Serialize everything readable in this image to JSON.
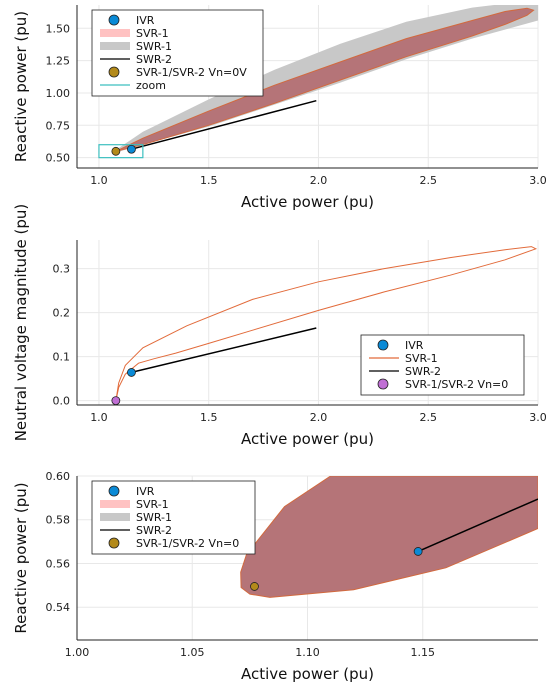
{
  "chart_data": [
    {
      "type": "area",
      "xlabel": "Active power (pu)",
      "ylabel": "Reactive power (pu)",
      "xlim": [
        0.9,
        3.0
      ],
      "ylim": [
        0.42,
        1.68
      ],
      "xticks": [
        "1.0",
        "1.5",
        "2.0",
        "2.5",
        "3.0"
      ],
      "yticks": [
        "0.50",
        "0.75",
        "1.00",
        "1.25",
        "1.50"
      ],
      "legend_position": "top-left",
      "legend": [
        "IVR",
        "SVR-1",
        "SWR-1",
        "SWR-2",
        "SVR-1/SVR-2 Vn=0V",
        "zoom"
      ],
      "ivr_point": {
        "x": 1.148,
        "y": 0.565
      },
      "vn0_point": {
        "x": 1.077,
        "y": 0.549
      },
      "svr1_upper": {
        "x": [
          1.077,
          1.2,
          1.5,
          1.8,
          2.1,
          2.4,
          2.7,
          2.85,
          2.95,
          2.98
        ],
        "y": [
          0.549,
          0.65,
          0.86,
          1.06,
          1.24,
          1.42,
          1.56,
          1.63,
          1.655,
          1.64
        ]
      },
      "svr1_lower": {
        "x": [
          1.077,
          1.2,
          1.5,
          1.8,
          2.1,
          2.4,
          2.7,
          2.85,
          2.95,
          2.98
        ],
        "y": [
          0.549,
          0.6,
          0.75,
          0.92,
          1.1,
          1.28,
          1.44,
          1.53,
          1.6,
          1.64
        ]
      },
      "swr1_upper": {
        "x": [
          1.077,
          1.2,
          1.5,
          1.8,
          2.1,
          2.4,
          2.7,
          3.0
        ],
        "y": [
          0.56,
          0.7,
          0.95,
          1.18,
          1.38,
          1.55,
          1.66,
          1.72
        ]
      },
      "swr1_lower": {
        "x": [
          1.077,
          1.2,
          1.5,
          1.8,
          2.1,
          2.4,
          2.7,
          3.0
        ],
        "y": [
          0.54,
          0.6,
          0.74,
          0.91,
          1.08,
          1.26,
          1.42,
          1.56
        ]
      },
      "swr2_line": {
        "x": [
          1.148,
          1.99
        ],
        "y": [
          0.565,
          0.94
        ]
      },
      "zoom_box": {
        "x": [
          1.0,
          1.2
        ],
        "y": [
          0.5,
          0.6
        ]
      }
    },
    {
      "type": "line",
      "xlabel": "Active power (pu)",
      "ylabel": "Neutral voltage magnitude (pu)",
      "xlim": [
        0.9,
        3.0
      ],
      "ylim": [
        -0.01,
        0.365
      ],
      "xticks": [
        "1.0",
        "1.5",
        "2.0",
        "2.5",
        "3.0"
      ],
      "yticks": [
        "0.0",
        "0.1",
        "0.2",
        "0.3"
      ],
      "legend_position": "bottom-right",
      "legend": [
        "IVR",
        "SVR-1",
        "SWR-2",
        "SVR-1/SVR-2 Vn=0"
      ],
      "ivr_point": {
        "x": 1.148,
        "y": 0.064
      },
      "vn0_point": {
        "x": 1.077,
        "y": 0.0
      },
      "svr1_curve": {
        "x": [
          1.077,
          1.09,
          1.12,
          1.2,
          1.4,
          1.7,
          2.0,
          2.3,
          2.6,
          2.85,
          2.97,
          2.99,
          2.85,
          2.6,
          2.3,
          2.0,
          1.7,
          1.5,
          1.35,
          1.25,
          1.18,
          1.12,
          1.09,
          1.077
        ],
        "y": [
          0.0,
          0.04,
          0.08,
          0.12,
          0.17,
          0.23,
          0.27,
          0.3,
          0.325,
          0.343,
          0.35,
          0.345,
          0.32,
          0.285,
          0.247,
          0.205,
          0.16,
          0.13,
          0.108,
          0.095,
          0.085,
          0.06,
          0.03,
          0.0
        ]
      },
      "swr2_line": {
        "x": [
          1.148,
          1.99
        ],
        "y": [
          0.064,
          0.165
        ]
      }
    },
    {
      "type": "area",
      "xlabel": "Active power (pu)",
      "ylabel": "Reactive power (pu)",
      "xlim": [
        1.0,
        1.2
      ],
      "ylim": [
        0.525,
        0.6
      ],
      "xticks": [
        "1.00",
        "1.05",
        "1.10",
        "1.15"
      ],
      "yticks": [
        "0.54",
        "0.56",
        "0.58",
        "0.60"
      ],
      "legend_position": "top-left",
      "legend": [
        "IVR",
        "SVR-1",
        "SWR-1",
        "SWR-2",
        "SVR-1/SVR-2 Vn=0"
      ],
      "ivr_point": {
        "x": 1.148,
        "y": 0.5655
      },
      "vn0_point": {
        "x": 1.077,
        "y": 0.5495
      },
      "region": {
        "x": [
          1.0837,
          1.12,
          1.16,
          1.2,
          1.2,
          1.16,
          1.11,
          1.09,
          1.0735,
          1.071,
          1.0712,
          1.075,
          1.0837
        ],
        "y": [
          0.5445,
          0.548,
          0.558,
          0.576,
          0.6,
          0.6,
          0.6,
          0.586,
          0.564,
          0.556,
          0.549,
          0.546,
          0.5445
        ]
      },
      "swr2_line": {
        "x": [
          1.148,
          1.2
        ],
        "y": [
          0.5655,
          0.5895
        ]
      }
    }
  ]
}
